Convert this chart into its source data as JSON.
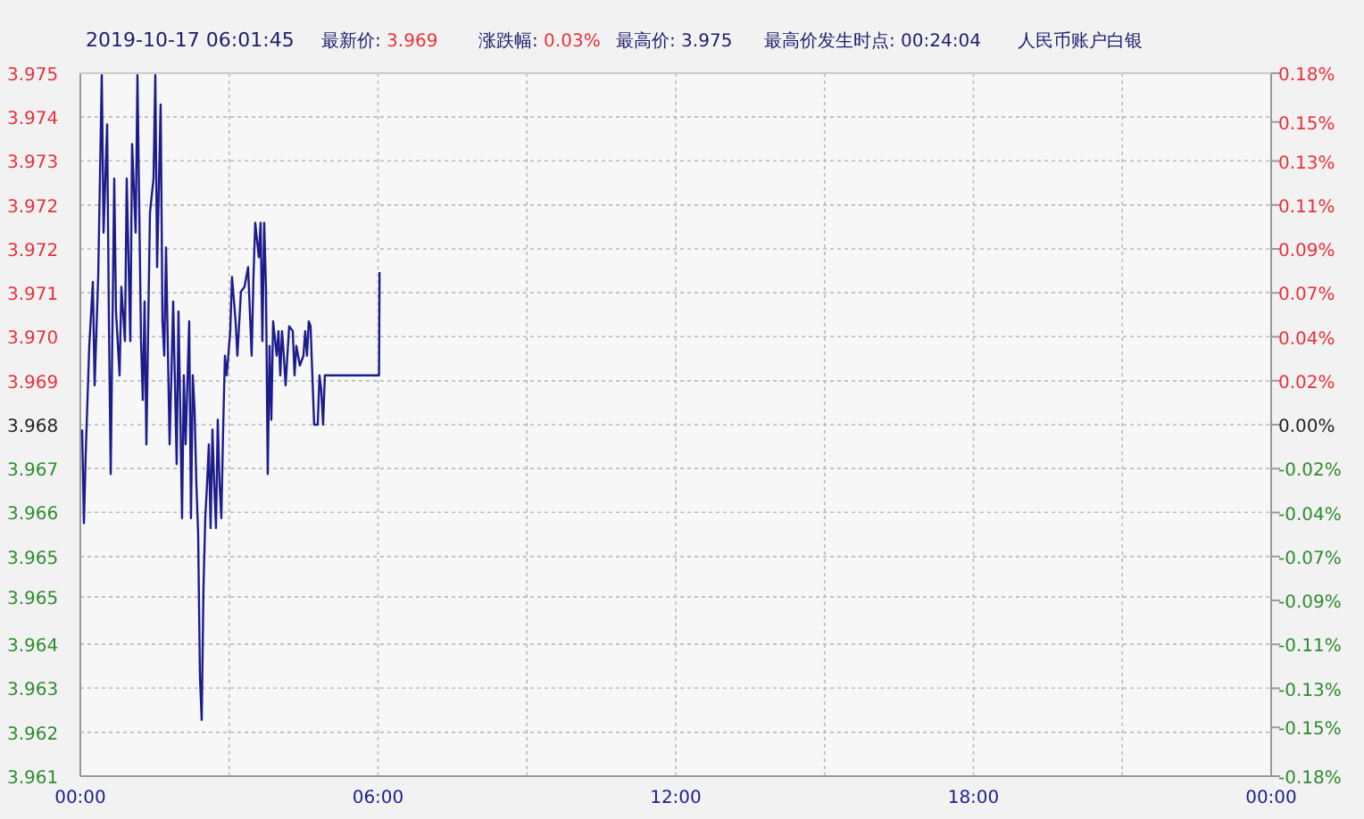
{
  "chart_data": {
    "type": "line",
    "annotations": [
      "2019-10-17 06:01:45",
      "最新价: 3.969",
      "涨跌幅: 0.03%",
      "最高价: 3.975",
      "最高价发生时点: 00:24:04",
      "人民币账户白银"
    ],
    "x": [
      0.036,
      0.072,
      0.108,
      0.18,
      0.252,
      0.288,
      0.36,
      0.432,
      0.468,
      0.54,
      0.576,
      0.612,
      0.683,
      0.719,
      0.791,
      0.827,
      0.899,
      0.935,
      1.007,
      1.043,
      1.115,
      1.151,
      1.223,
      1.259,
      1.295,
      1.331,
      1.403,
      1.475,
      1.511,
      1.547,
      1.619,
      1.655,
      1.691,
      1.727,
      1.799,
      1.835,
      1.871,
      1.942,
      1.978,
      2.014,
      2.05,
      2.086,
      2.122,
      2.194,
      2.23,
      2.266,
      2.302,
      2.338,
      2.374,
      2.41,
      2.446,
      2.482,
      2.518,
      2.554,
      2.59,
      2.626,
      2.662,
      2.698,
      2.734,
      2.77,
      2.806,
      2.842,
      2.878,
      2.914,
      2.95,
      3.021,
      3.057,
      3.129,
      3.165,
      3.237,
      3.309,
      3.381,
      3.453,
      3.489,
      3.525,
      3.597,
      3.633,
      3.669,
      3.705,
      3.741,
      3.777,
      3.813,
      3.849,
      3.885,
      3.957,
      3.993,
      4.029,
      4.065,
      4.101,
      4.137,
      4.173,
      4.209,
      4.281,
      4.317,
      4.353,
      4.424,
      4.496,
      4.532,
      4.568,
      4.604,
      4.64,
      4.676,
      4.712,
      4.784,
      4.82,
      4.856,
      4.892,
      4.928,
      6.02,
      6.03
    ],
    "series": [
      {
        "color": "#1c1c8c",
        "values": [
          3.9679,
          3.966,
          3.9674,
          3.9696,
          3.9709,
          3.9688,
          3.971,
          3.9751,
          3.9719,
          3.9741,
          3.9701,
          3.967,
          3.973,
          3.9703,
          3.969,
          3.9708,
          3.9697,
          3.973,
          3.9697,
          3.9737,
          3.9719,
          3.9751,
          3.9697,
          3.9685,
          3.9705,
          3.9676,
          3.9723,
          3.973,
          3.9751,
          3.9712,
          3.9745,
          3.9701,
          3.9694,
          3.9716,
          3.9676,
          3.969,
          3.9705,
          3.9672,
          3.9703,
          3.9683,
          3.9661,
          3.969,
          3.9676,
          3.9701,
          3.9661,
          3.969,
          3.9683,
          3.9668,
          3.9658,
          3.9629,
          3.962,
          3.9647,
          3.9661,
          3.9668,
          3.9676,
          3.9659,
          3.9679,
          3.9668,
          3.9659,
          3.9681,
          3.9668,
          3.9661,
          3.9679,
          3.9694,
          3.969,
          3.9699,
          3.971,
          3.9701,
          3.9694,
          3.9707,
          3.9708,
          3.9712,
          3.9694,
          3.971,
          3.9721,
          3.9714,
          3.9721,
          3.9697,
          3.9721,
          3.9708,
          3.967,
          3.9696,
          3.9681,
          3.9701,
          3.9694,
          3.9699,
          3.969,
          3.9699,
          3.9694,
          3.9688,
          3.9694,
          3.97,
          3.9699,
          3.969,
          3.9696,
          3.9692,
          3.9694,
          3.9699,
          3.9694,
          3.9701,
          3.97,
          3.969,
          3.968,
          3.968,
          3.969,
          3.9687,
          3.968,
          3.969,
          3.969,
          3.9711
        ]
      }
    ],
    "xlim": [
      0,
      24
    ],
    "xticks": [
      {
        "value": 0,
        "label": "00:00"
      },
      {
        "value": 3,
        "label": null
      },
      {
        "value": 6,
        "label": "06:00"
      },
      {
        "value": 9,
        "label": null
      },
      {
        "value": 12,
        "label": "12:00"
      },
      {
        "value": 15,
        "label": null
      },
      {
        "value": 18,
        "label": "18:00"
      },
      {
        "value": 21,
        "label": null
      },
      {
        "value": 24,
        "label": "00:00"
      }
    ],
    "ylim": [
      3.96086,
      3.97514
    ],
    "yticks": [
      {
        "value": 3.96086,
        "label": "3.961"
      },
      {
        "value": 3.96175,
        "label": "3.962"
      },
      {
        "value": 3.96265,
        "label": "3.963"
      },
      {
        "value": 3.96354,
        "label": "3.964"
      },
      {
        "value": 3.9645,
        "label": "3.965"
      },
      {
        "value": 3.96532,
        "label": "3.965"
      },
      {
        "value": 3.96622,
        "label": "3.966"
      },
      {
        "value": 3.96711,
        "label": "3.967"
      },
      {
        "value": 3.968,
        "label": "3.968"
      },
      {
        "value": 3.96889,
        "label": "3.969"
      },
      {
        "value": 3.96979,
        "label": "3.970"
      },
      {
        "value": 3.97068,
        "label": "3.971"
      },
      {
        "value": 3.97157,
        "label": "3.972"
      },
      {
        "value": 3.97246,
        "label": "3.972"
      },
      {
        "value": 3.97336,
        "label": "3.973"
      },
      {
        "value": 3.97425,
        "label": "3.974"
      },
      {
        "value": 3.97514,
        "label": "3.975"
      }
    ],
    "y2lim": [
      -0.18,
      0.18
    ],
    "y2ticks": [
      {
        "value": -0.18,
        "label": "-0.18%"
      },
      {
        "value": -0.155,
        "label": "-0.15%"
      },
      {
        "value": -0.135,
        "label": "-0.13%"
      },
      {
        "value": -0.1125,
        "label": "-0.11%"
      },
      {
        "value": -0.09,
        "label": "-0.09%"
      },
      {
        "value": -0.0675,
        "label": "-0.07%"
      },
      {
        "value": -0.045,
        "label": "-0.04%"
      },
      {
        "value": -0.0225,
        "label": "-0.02%"
      },
      {
        "value": 0,
        "label": "0.00%"
      },
      {
        "value": 0.0225,
        "label": "0.02%"
      },
      {
        "value": 0.045,
        "label": "0.04%"
      },
      {
        "value": 0.0675,
        "label": "0.07%"
      },
      {
        "value": 0.09,
        "label": "0.09%"
      },
      {
        "value": 0.1125,
        "label": "0.11%"
      },
      {
        "value": 0.135,
        "label": "0.13%"
      },
      {
        "value": 0.155,
        "label": "0.15%"
      },
      {
        "value": 0.18,
        "label": "0.18%"
      }
    ],
    "grid": true
  }
}
